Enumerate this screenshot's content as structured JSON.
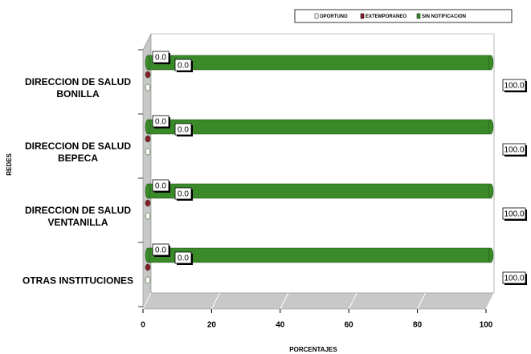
{
  "chart_data": {
    "type": "bar",
    "orientation": "horizontal",
    "x_label": "PORCENTAJES",
    "y_label": "REDES",
    "categories": [
      "DIRECCION DE SALUD BONILLA",
      "DIRECCION DE SALUD BEPECA",
      "DIRECCION DE SALUD VENTANILLA",
      "OTRAS INSTITUCIONES"
    ],
    "series": [
      {
        "name": "OPORTUNO",
        "color": "#ffffff",
        "values": [
          0,
          0,
          0,
          0
        ],
        "value_labels": [
          "0.0",
          "0.0",
          "0.0",
          "0.0"
        ]
      },
      {
        "name": "EXTEMPORANEO",
        "color": "#8b1a2b",
        "values": [
          0,
          0,
          0,
          0
        ],
        "value_labels": [
          "0.0",
          "0.0",
          "0.0",
          "0.0"
        ]
      },
      {
        "name": "SIN NOTIFICACION",
        "color": "#3a8a2a",
        "values": [
          100,
          100,
          100,
          100
        ],
        "value_labels": [
          "100.0",
          "100.0",
          "100.0",
          "100.0"
        ]
      }
    ],
    "xlim": [
      0,
      100
    ],
    "xticks": [
      0,
      20,
      40,
      60,
      80,
      100
    ],
    "legend": "top"
  }
}
